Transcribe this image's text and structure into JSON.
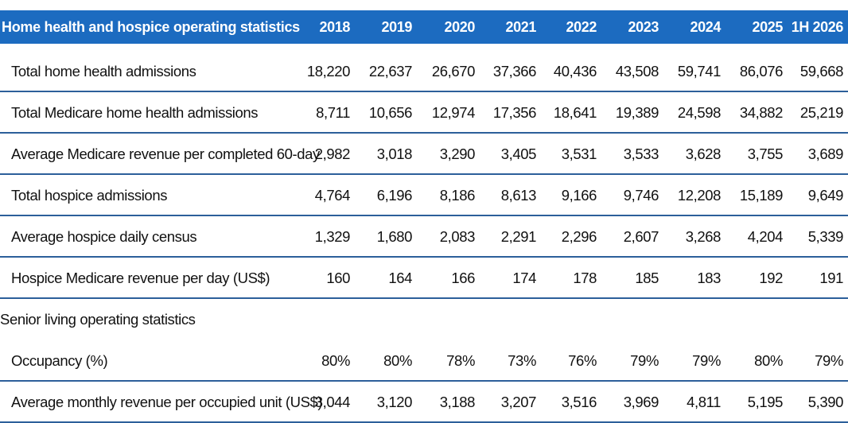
{
  "table": {
    "header": {
      "title": "Home health and hospice operating statistics",
      "years": [
        "2018",
        "2019",
        "2020",
        "2021",
        "2022",
        "2023",
        "2024",
        "2025",
        "1H 2026"
      ]
    },
    "rows": [
      {
        "label": "Total home health admissions",
        "values": [
          "18,220",
          "22,637",
          "26,670",
          "37,366",
          "40,436",
          "43,508",
          "59,741",
          "86,076",
          "59,668"
        ]
      },
      {
        "label": "Total Medicare home health admissions",
        "values": [
          "8,711",
          "10,656",
          "12,974",
          "17,356",
          "18,641",
          "19,389",
          "24,598",
          "34,882",
          "25,219"
        ]
      },
      {
        "label": "Average Medicare revenue per completed 60-day",
        "values": [
          "2,982",
          "3,018",
          "3,290",
          "3,405",
          "3,531",
          "3,533",
          "3,628",
          "3,755",
          "3,689"
        ]
      },
      {
        "label": "Total hospice admissions",
        "values": [
          "4,764",
          "6,196",
          "8,186",
          "8,613",
          "9,166",
          "9,746",
          "12,208",
          "15,189",
          "9,649"
        ]
      },
      {
        "label": "Average hospice daily census",
        "values": [
          "1,329",
          "1,680",
          "2,083",
          "2,291",
          "2,296",
          "2,607",
          "3,268",
          "4,204",
          "5,339"
        ]
      },
      {
        "label": "Hospice Medicare revenue per day (US$)",
        "values": [
          "160",
          "164",
          "166",
          "174",
          "178",
          "185",
          "183",
          "192",
          "191"
        ]
      }
    ],
    "section2": {
      "title": "Senior living operating statistics",
      "rows": [
        {
          "label": "Occupancy (%)",
          "values": [
            "80%",
            "80%",
            "78%",
            "73%",
            "76%",
            "79%",
            "79%",
            "80%",
            "79%"
          ]
        },
        {
          "label": "Average monthly revenue per occupied unit (US$)",
          "values": [
            "3,044",
            "3,120",
            "3,188",
            "3,207",
            "3,516",
            "3,969",
            "4,811",
            "5,195",
            "5,390"
          ]
        }
      ]
    }
  }
}
